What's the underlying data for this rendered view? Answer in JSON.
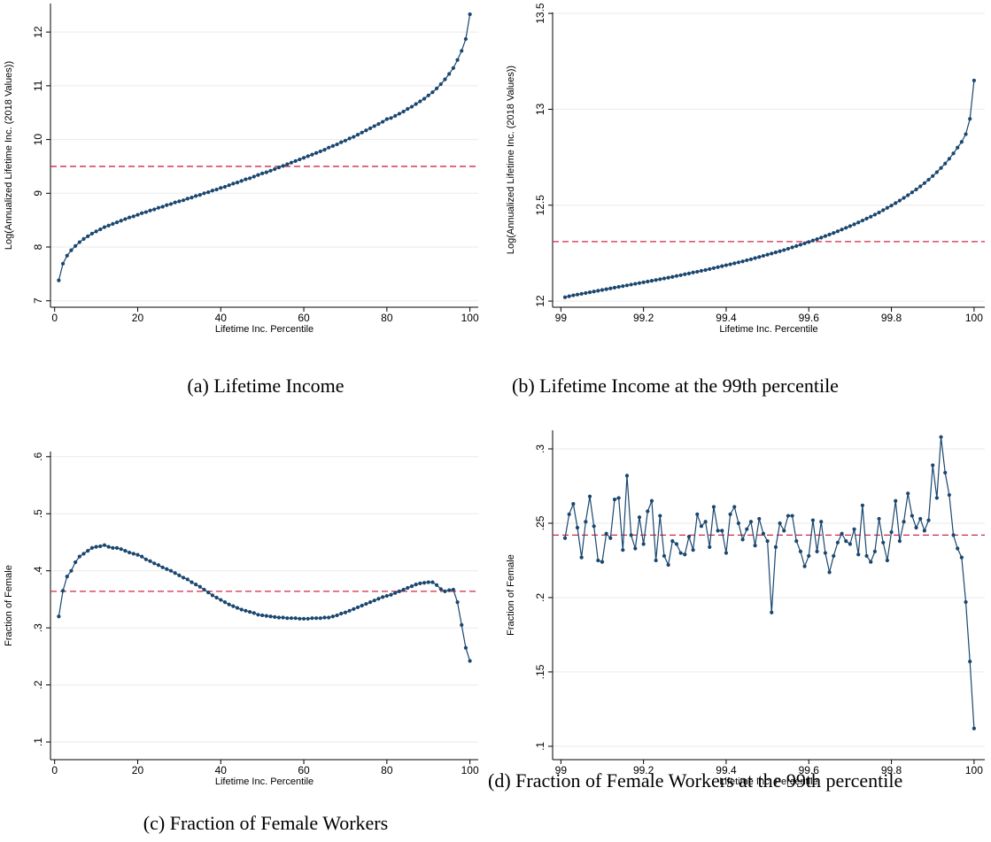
{
  "chart_data": [
    {
      "type": "line",
      "caption": "(a) Lifetime Income",
      "xlabel": "Lifetime Inc. Percentile",
      "ylabel": "Log(Annualized Lifetime Inc. (2018 Values))",
      "x": [
        1,
        2,
        3,
        4,
        5,
        6,
        7,
        8,
        9,
        10,
        11,
        12,
        13,
        14,
        15,
        16,
        17,
        18,
        19,
        20,
        21,
        22,
        23,
        24,
        25,
        26,
        27,
        28,
        29,
        30,
        31,
        32,
        33,
        34,
        35,
        36,
        37,
        38,
        39,
        40,
        41,
        42,
        43,
        44,
        45,
        46,
        47,
        48,
        49,
        50,
        51,
        52,
        53,
        54,
        55,
        56,
        57,
        58,
        59,
        60,
        61,
        62,
        63,
        64,
        65,
        66,
        67,
        68,
        69,
        70,
        71,
        72,
        73,
        74,
        75,
        76,
        77,
        78,
        79,
        80,
        81,
        82,
        83,
        84,
        85,
        86,
        87,
        88,
        89,
        90,
        91,
        92,
        93,
        94,
        95,
        96,
        97,
        98,
        99,
        100
      ],
      "values": [
        7.38,
        7.69,
        7.84,
        7.94,
        8.02,
        8.09,
        8.15,
        8.2,
        8.25,
        8.29,
        8.33,
        8.37,
        8.4,
        8.43,
        8.46,
        8.49,
        8.52,
        8.55,
        8.57,
        8.6,
        8.63,
        8.65,
        8.68,
        8.7,
        8.73,
        8.75,
        8.78,
        8.8,
        8.83,
        8.85,
        8.87,
        8.9,
        8.92,
        8.95,
        8.97,
        9.0,
        9.02,
        9.05,
        9.07,
        9.1,
        9.12,
        9.15,
        9.18,
        9.2,
        9.23,
        9.26,
        9.28,
        9.31,
        9.34,
        9.37,
        9.39,
        9.42,
        9.45,
        9.48,
        9.51,
        9.54,
        9.57,
        9.6,
        9.63,
        9.66,
        9.69,
        9.72,
        9.75,
        9.78,
        9.81,
        9.85,
        9.88,
        9.91,
        9.95,
        9.98,
        10.02,
        10.05,
        10.09,
        10.13,
        10.17,
        10.21,
        10.25,
        10.29,
        10.33,
        10.38,
        10.4,
        10.44,
        10.48,
        10.52,
        10.57,
        10.61,
        10.66,
        10.71,
        10.76,
        10.82,
        10.88,
        10.95,
        11.03,
        11.12,
        11.22,
        11.33,
        11.48,
        11.65,
        11.87,
        12.33
      ],
      "color": "#1a476f",
      "hline": 9.5,
      "hline_color": "#d0274a",
      "xlim": [
        -1,
        102
      ],
      "xticks": [
        0,
        20,
        40,
        60,
        80,
        100
      ],
      "ylim": [
        6.88,
        12.53
      ],
      "yticks": [
        7,
        8,
        9,
        10,
        11,
        12
      ],
      "grid": true
    },
    {
      "type": "line",
      "caption": "(b) Lifetime Income at the 99th percentile",
      "xlabel": "Lifetime Inc. Percentile",
      "ylabel": "Log(Annualized Lifetime Inc. (2018 Values))",
      "x": [
        99.01,
        99.02,
        99.03,
        99.04,
        99.05,
        99.06,
        99.07,
        99.08,
        99.09,
        99.1,
        99.11,
        99.12,
        99.13,
        99.14,
        99.15,
        99.16,
        99.17,
        99.18,
        99.19,
        99.2,
        99.21,
        99.22,
        99.23,
        99.24,
        99.25,
        99.26,
        99.27,
        99.28,
        99.29,
        99.3,
        99.31,
        99.32,
        99.33,
        99.34,
        99.35,
        99.36,
        99.37,
        99.38,
        99.39,
        99.4,
        99.41,
        99.42,
        99.43,
        99.44,
        99.45,
        99.46,
        99.47,
        99.48,
        99.49,
        99.5,
        99.51,
        99.52,
        99.53,
        99.54,
        99.55,
        99.56,
        99.57,
        99.58,
        99.59,
        99.6,
        99.61,
        99.62,
        99.63,
        99.64,
        99.65,
        99.66,
        99.67,
        99.68,
        99.69,
        99.7,
        99.71,
        99.72,
        99.73,
        99.74,
        99.75,
        99.76,
        99.77,
        99.78,
        99.79,
        99.8,
        99.81,
        99.82,
        99.83,
        99.84,
        99.85,
        99.86,
        99.87,
        99.88,
        99.89,
        99.9,
        99.91,
        99.92,
        99.93,
        99.94,
        99.95,
        99.96,
        99.97,
        99.98,
        99.99,
        100
      ],
      "values": [
        12.02,
        12.025,
        12.03,
        12.034,
        12.038,
        12.042,
        12.046,
        12.05,
        12.054,
        12.058,
        12.062,
        12.066,
        12.07,
        12.074,
        12.078,
        12.082,
        12.086,
        12.09,
        12.094,
        12.098,
        12.102,
        12.106,
        12.11,
        12.114,
        12.118,
        12.122,
        12.126,
        12.131,
        12.135,
        12.14,
        12.144,
        12.149,
        12.153,
        12.158,
        12.162,
        12.167,
        12.172,
        12.177,
        12.182,
        12.187,
        12.192,
        12.197,
        12.202,
        12.207,
        12.213,
        12.218,
        12.224,
        12.23,
        12.236,
        12.242,
        12.248,
        12.254,
        12.26,
        12.266,
        12.273,
        12.28,
        12.287,
        12.294,
        12.301,
        12.308,
        12.316,
        12.323,
        12.331,
        12.339,
        12.347,
        12.355,
        12.364,
        12.373,
        12.382,
        12.391,
        12.4,
        12.41,
        12.42,
        12.43,
        12.44,
        12.451,
        12.462,
        12.474,
        12.486,
        12.498,
        12.511,
        12.524,
        12.538,
        12.552,
        12.567,
        12.582,
        12.598,
        12.615,
        12.633,
        12.652,
        12.672,
        12.694,
        12.717,
        12.742,
        12.77,
        12.8,
        12.83,
        12.87,
        12.95,
        13.15
      ],
      "color": "#1a476f",
      "hline": 12.31,
      "hline_color": "#d0274a",
      "xlim": [
        98.98,
        100.026
      ],
      "xticks": [
        99,
        99.2,
        99.4,
        99.6,
        99.8,
        100
      ],
      "ylim": [
        11.968,
        13.505
      ],
      "yticks": [
        12,
        12.5,
        13,
        13.5
      ],
      "grid": true
    },
    {
      "type": "line",
      "caption": "(c) Fraction of Female Workers",
      "xlabel": "Lifetime Inc. Percentile",
      "ylabel": "Fraction of Female",
      "x": [
        1,
        2,
        3,
        4,
        5,
        6,
        7,
        8,
        9,
        10,
        11,
        12,
        13,
        14,
        15,
        16,
        17,
        18,
        19,
        20,
        21,
        22,
        23,
        24,
        25,
        26,
        27,
        28,
        29,
        30,
        31,
        32,
        33,
        34,
        35,
        36,
        37,
        38,
        39,
        40,
        41,
        42,
        43,
        44,
        45,
        46,
        47,
        48,
        49,
        50,
        51,
        52,
        53,
        54,
        55,
        56,
        57,
        58,
        59,
        60,
        61,
        62,
        63,
        64,
        65,
        66,
        67,
        68,
        69,
        70,
        71,
        72,
        73,
        74,
        75,
        76,
        77,
        78,
        79,
        80,
        81,
        82,
        83,
        84,
        85,
        86,
        87,
        88,
        89,
        90,
        91,
        92,
        93,
        94,
        95,
        96,
        97,
        98,
        99,
        100
      ],
      "values": [
        0.32,
        0.365,
        0.39,
        0.4,
        0.415,
        0.425,
        0.43,
        0.435,
        0.44,
        0.442,
        0.443,
        0.445,
        0.442,
        0.44,
        0.44,
        0.438,
        0.435,
        0.432,
        0.43,
        0.428,
        0.425,
        0.42,
        0.417,
        0.413,
        0.41,
        0.406,
        0.403,
        0.4,
        0.396,
        0.392,
        0.388,
        0.385,
        0.38,
        0.376,
        0.372,
        0.367,
        0.362,
        0.357,
        0.353,
        0.349,
        0.345,
        0.341,
        0.338,
        0.335,
        0.332,
        0.33,
        0.328,
        0.326,
        0.323,
        0.322,
        0.321,
        0.32,
        0.319,
        0.318,
        0.318,
        0.317,
        0.317,
        0.317,
        0.316,
        0.316,
        0.316,
        0.317,
        0.317,
        0.317,
        0.318,
        0.318,
        0.32,
        0.322,
        0.325,
        0.327,
        0.33,
        0.333,
        0.336,
        0.339,
        0.342,
        0.345,
        0.348,
        0.351,
        0.354,
        0.356,
        0.358,
        0.361,
        0.364,
        0.367,
        0.37,
        0.373,
        0.376,
        0.378,
        0.379,
        0.38,
        0.38,
        0.375,
        0.368,
        0.364,
        0.366,
        0.367,
        0.345,
        0.305,
        0.265,
        0.242
      ],
      "color": "#1a476f",
      "hline": 0.364,
      "hline_color": "#d0274a",
      "xlim": [
        -1,
        102
      ],
      "xticks": [
        0,
        20,
        40,
        60,
        80,
        100
      ],
      "ylim": [
        0.069,
        0.609
      ],
      "yticks": [
        {
          "value": 0.1,
          "label": ".1"
        },
        {
          "value": 0.2,
          "label": ".2"
        },
        {
          "value": 0.3,
          "label": ".3"
        },
        {
          "value": 0.4,
          "label": ".4"
        },
        {
          "value": 0.5,
          "label": ".5"
        },
        {
          "value": 0.6,
          "label": ".6"
        }
      ],
      "grid": true
    },
    {
      "type": "line",
      "caption": "(d) Fraction of Female Workers at the 99th percentile",
      "xlabel": "Lifetime Inc. Percentile",
      "ylabel": "Fraction of Female",
      "x": [
        99.01,
        99.02,
        99.03,
        99.04,
        99.05,
        99.06,
        99.07,
        99.08,
        99.09,
        99.1,
        99.11,
        99.12,
        99.13,
        99.14,
        99.15,
        99.16,
        99.17,
        99.18,
        99.19,
        99.2,
        99.21,
        99.22,
        99.23,
        99.24,
        99.25,
        99.26,
        99.27,
        99.28,
        99.29,
        99.3,
        99.31,
        99.32,
        99.33,
        99.34,
        99.35,
        99.36,
        99.37,
        99.38,
        99.39,
        99.4,
        99.41,
        99.42,
        99.43,
        99.44,
        99.45,
        99.46,
        99.47,
        99.48,
        99.49,
        99.5,
        99.51,
        99.52,
        99.53,
        99.54,
        99.55,
        99.56,
        99.57,
        99.58,
        99.59,
        99.6,
        99.61,
        99.62,
        99.63,
        99.64,
        99.65,
        99.66,
        99.67,
        99.68,
        99.69,
        99.7,
        99.71,
        99.72,
        99.73,
        99.74,
        99.75,
        99.76,
        99.77,
        99.78,
        99.79,
        99.8,
        99.81,
        99.82,
        99.83,
        99.84,
        99.85,
        99.86,
        99.87,
        99.88,
        99.89,
        99.9,
        99.91,
        99.92,
        99.93,
        99.94,
        99.95,
        99.96,
        99.97,
        99.98,
        99.99,
        100
      ],
      "values": [
        0.24,
        0.256,
        0.263,
        0.247,
        0.227,
        0.251,
        0.268,
        0.248,
        0.225,
        0.224,
        0.243,
        0.24,
        0.266,
        0.267,
        0.232,
        0.282,
        0.242,
        0.233,
        0.254,
        0.236,
        0.258,
        0.265,
        0.225,
        0.255,
        0.228,
        0.222,
        0.238,
        0.236,
        0.23,
        0.229,
        0.241,
        0.232,
        0.256,
        0.248,
        0.251,
        0.234,
        0.261,
        0.245,
        0.245,
        0.23,
        0.256,
        0.261,
        0.25,
        0.239,
        0.246,
        0.251,
        0.235,
        0.253,
        0.243,
        0.238,
        0.19,
        0.234,
        0.25,
        0.245,
        0.255,
        0.255,
        0.238,
        0.231,
        0.221,
        0.228,
        0.252,
        0.231,
        0.251,
        0.23,
        0.217,
        0.228,
        0.237,
        0.243,
        0.238,
        0.236,
        0.246,
        0.229,
        0.262,
        0.228,
        0.224,
        0.231,
        0.253,
        0.237,
        0.225,
        0.244,
        0.265,
        0.238,
        0.251,
        0.27,
        0.255,
        0.247,
        0.253,
        0.245,
        0.252,
        0.289,
        0.267,
        0.308,
        0.284,
        0.269,
        0.242,
        0.233,
        0.227,
        0.197,
        0.157,
        0.112
      ],
      "color": "#1a476f",
      "hline": 0.242,
      "hline_color": "#d0274a",
      "xlim": [
        98.98,
        100.026
      ],
      "xticks": [
        99,
        99.2,
        99.4,
        99.6,
        99.8,
        100
      ],
      "ylim": [
        0.091,
        0.3125
      ],
      "yticks": [
        {
          "value": 0.1,
          "label": ".1"
        },
        {
          "value": 0.15,
          "label": ".15"
        },
        {
          "value": 0.2,
          "label": ".2"
        },
        {
          "value": 0.25,
          "label": ".25"
        },
        {
          "value": 0.3,
          "label": ".3"
        }
      ],
      "grid": true
    }
  ]
}
